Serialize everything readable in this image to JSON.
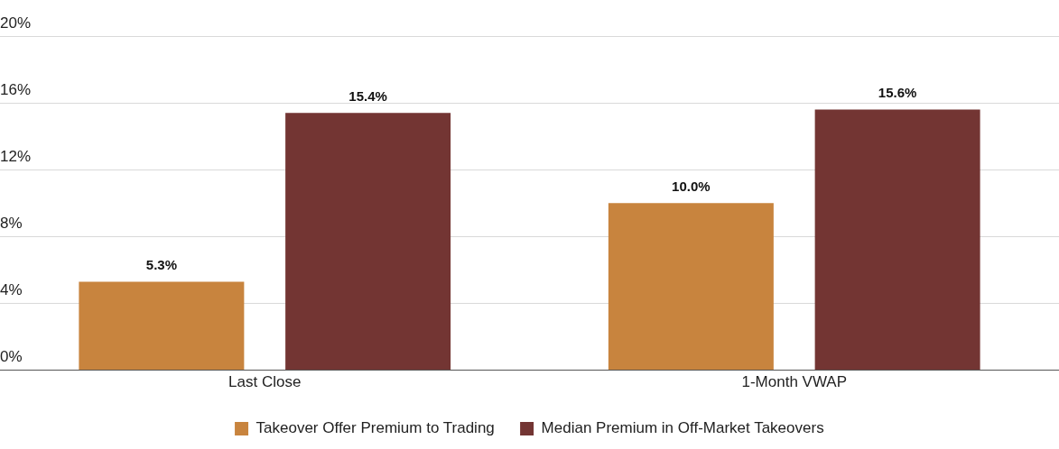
{
  "chart_data": {
    "type": "bar",
    "categories": [
      "Last Close",
      "1-Month VWAP"
    ],
    "series": [
      {
        "name": "Takeover Offer Premium to Trading",
        "color": "#c8843e",
        "values": [
          5.3,
          10.0
        ],
        "value_labels": [
          "5.3%",
          "10.0%"
        ]
      },
      {
        "name": "Median Premium in Off-Market Takeovers",
        "color": "#733533",
        "values": [
          15.4,
          15.6
        ],
        "value_labels": [
          "15.4%",
          "15.6%"
        ]
      }
    ],
    "ylim": [
      0,
      20
    ],
    "yticks": [
      {
        "value": 0,
        "label": "0%"
      },
      {
        "value": 4,
        "label": "4%"
      },
      {
        "value": 8,
        "label": "8%"
      },
      {
        "value": 12,
        "label": "12%"
      },
      {
        "value": 16,
        "label": "16%"
      },
      {
        "value": 20,
        "label": "20%"
      }
    ],
    "grid": "y",
    "legend": "bottom"
  }
}
